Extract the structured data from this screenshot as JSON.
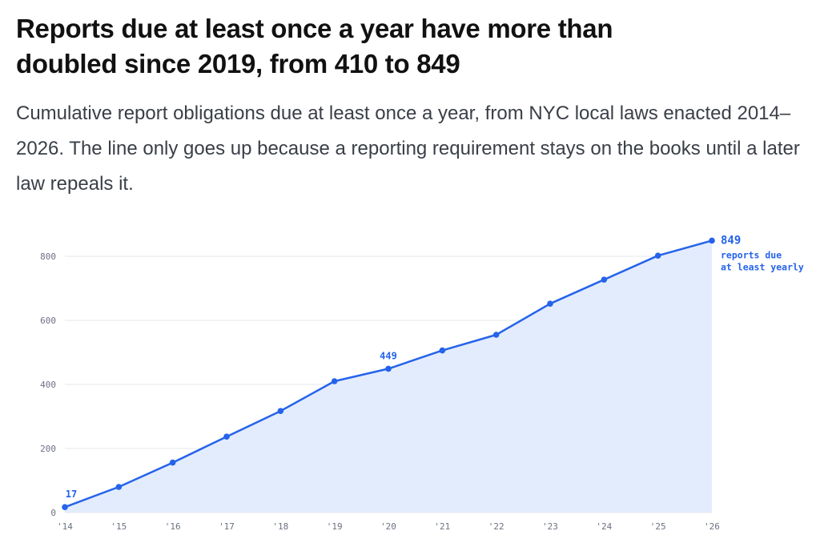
{
  "header": {
    "title": "Reports due at least once a year have more than doubled since 2019, from 410 to 849",
    "subtitle": "Cumulative report obligations due at least once a year, from NYC local laws enacted 2014–2026. The line only goes up because a reporting requirement stays on the books until a later law repeals it."
  },
  "colors": {
    "line": "#2563eb",
    "area": "#e3ecfd",
    "grid": "#e5e7eb",
    "tick": "#6b7280"
  },
  "chart_data": {
    "type": "area",
    "title": "",
    "xlabel": "",
    "ylabel": "",
    "x": [
      "'14",
      "'15",
      "'16",
      "'17",
      "'18",
      "'19",
      "'20",
      "'21",
      "'22",
      "'23",
      "'24",
      "'25",
      "'26"
    ],
    "series": [
      {
        "values": [
          17,
          80,
          156,
          237,
          317,
          410,
          449,
          506,
          555,
          652,
          727,
          802,
          849
        ]
      }
    ],
    "ylim": [
      0,
      800
    ],
    "yticks": [
      "0",
      "200",
      "400",
      "600",
      "800"
    ],
    "grid": true,
    "annotations": [
      {
        "index": 0,
        "text": "17"
      },
      {
        "index": 6,
        "text": "449"
      }
    ],
    "end_label": {
      "value": "849",
      "caption": [
        "reports due",
        "at least yearly"
      ]
    }
  }
}
